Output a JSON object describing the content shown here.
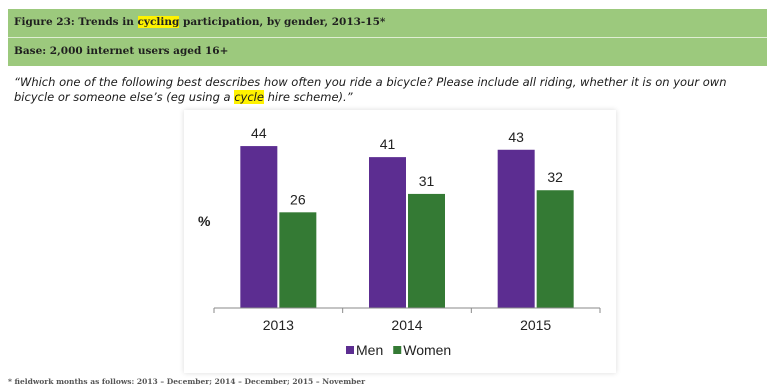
{
  "header": {
    "title_prefix": "Figure 23: Trends in ",
    "title_highlight": "cycling",
    "title_suffix": " participation, by gender, 2013-15*",
    "base": "Base: 2,000 internet users aged 16+"
  },
  "question": {
    "part1": "“Which one of the following best describes how often you ride a bicycle? Please include all riding, whether it is on your own bicycle or someone else’s (eg using a ",
    "highlight": "cycle",
    "part2": " hire scheme).”"
  },
  "footnote": "* fieldwork months as follows: 2013 – December; 2014 – December; 2015 – November",
  "chart_data": {
    "type": "bar",
    "title": "",
    "xlabel": "",
    "ylabel": "%",
    "categories": [
      "2013",
      "2014",
      "2015"
    ],
    "series": [
      {
        "name": "Men",
        "values": [
          44,
          41,
          43
        ],
        "color": "#5c2d91"
      },
      {
        "name": "Women",
        "values": [
          26,
          31,
          32
        ],
        "color": "#347a34"
      }
    ],
    "ylim": [
      0,
      50
    ],
    "grid": false,
    "legend_position": "bottom"
  }
}
